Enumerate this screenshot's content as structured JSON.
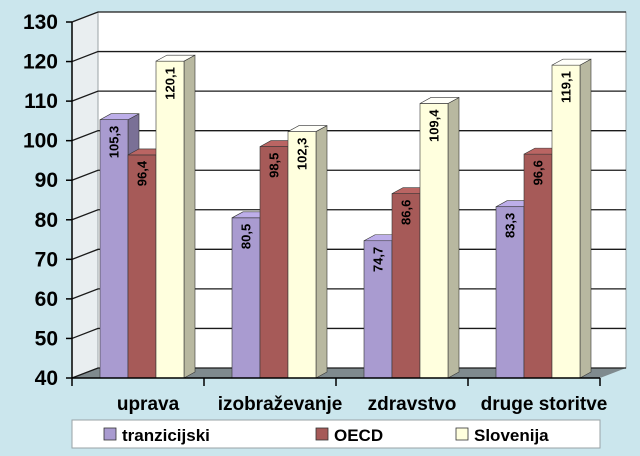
{
  "chart_data": {
    "type": "bar",
    "categories": [
      "uprava",
      "izobraževanje",
      "zdravstvo",
      "druge storitve"
    ],
    "series": [
      {
        "name": "tranzicijski",
        "values": [
          105.3,
          80.5,
          74.7,
          83.3
        ],
        "labels": [
          "105,3",
          "80,5",
          "74,7",
          "83,3"
        ]
      },
      {
        "name": "OECD",
        "values": [
          96.4,
          98.5,
          86.6,
          96.6
        ],
        "labels": [
          "96,4",
          "98,5",
          "86,6",
          "96,6"
        ]
      },
      {
        "name": "Slovenija",
        "values": [
          120.1,
          102.3,
          109.4,
          119.1
        ],
        "labels": [
          "120,1",
          "102,3",
          "109,4",
          "119,1"
        ]
      }
    ],
    "ylim": [
      40,
      130
    ],
    "yticks": [
      40,
      50,
      60,
      70,
      80,
      90,
      100,
      110,
      120,
      130
    ],
    "grid": true,
    "legend": "bottom",
    "three_d": true,
    "colors": {
      "tranzicijski": "#a99bd0",
      "OECD": "#a65a58",
      "Slovenija": "#ffffde",
      "background": "#cbe6ed",
      "wall": "#ffffff",
      "floor": "#7f8a8e"
    }
  }
}
